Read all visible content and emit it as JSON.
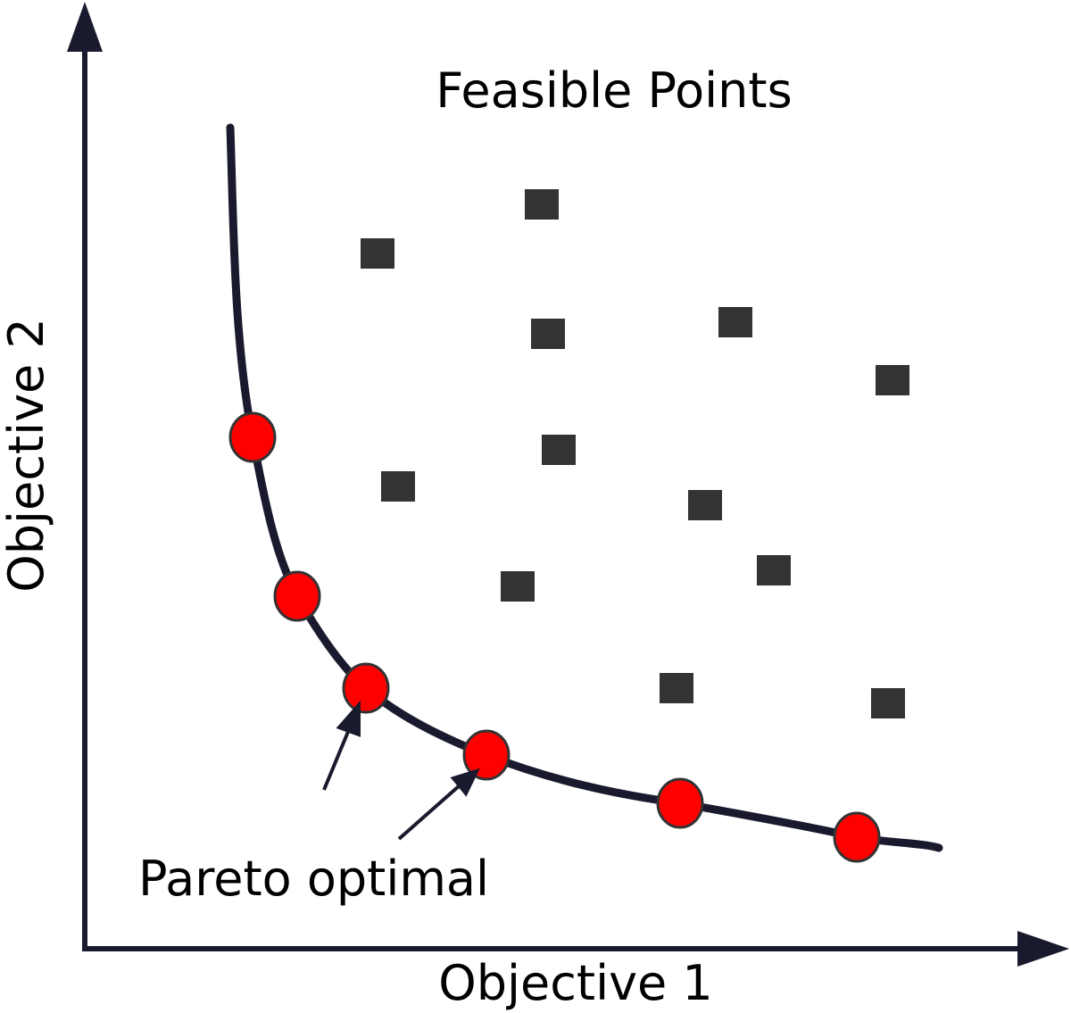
{
  "title": "Feasible Points",
  "annotation": "Pareto optimal",
  "x_axis_label": "Objective 1",
  "y_axis_label": "Objective 2"
}
